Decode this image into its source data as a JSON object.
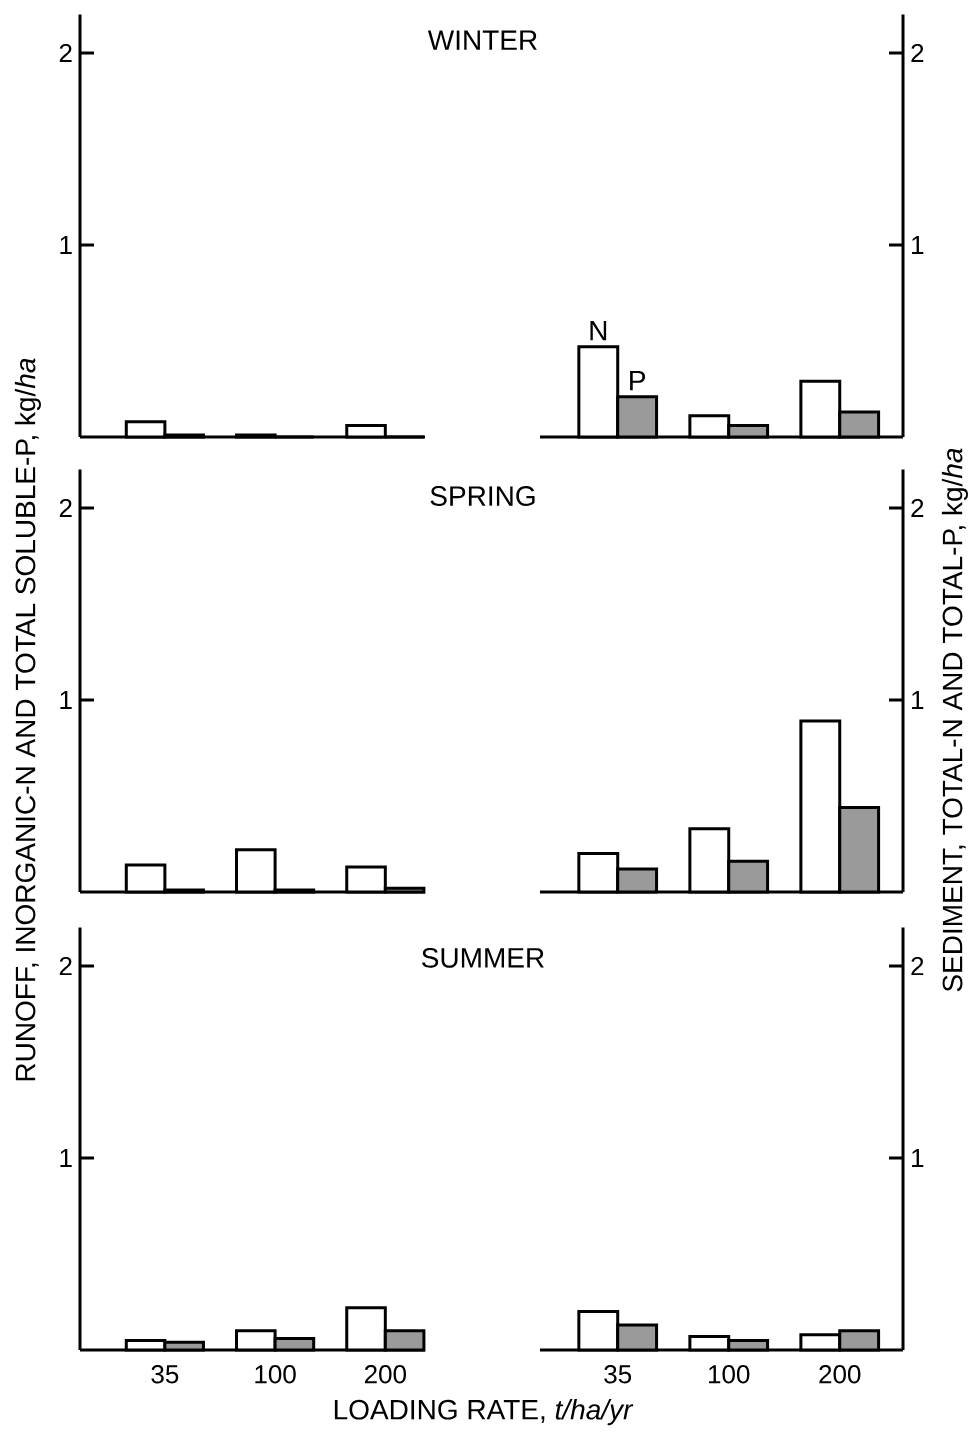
{
  "chart_data": [
    {
      "type": "bar",
      "title": "WINTER",
      "categories": [
        "35",
        "100",
        "200"
      ],
      "series": [
        {
          "color": "#ffffff",
          "values": [
            0.08,
            0.01,
            0.06
          ]
        },
        {
          "color": "#9a9a9a",
          "values": [
            0.01,
            0,
            0
          ]
        }
      ],
      "ylim": [
        0,
        2.2
      ],
      "yticks": [
        1,
        2
      ],
      "tick_labels": "y"
    },
    {
      "type": "bar",
      "categories": [
        "35",
        "100",
        "200"
      ],
      "series": [
        {
          "color": "#ffffff",
          "values": [
            0.47,
            0.11,
            0.29
          ]
        },
        {
          "color": "#9a9a9a",
          "values": [
            0.21,
            0.06,
            0.13
          ]
        }
      ],
      "ylim": [
        0,
        2.2
      ],
      "yticks": [
        1,
        2
      ],
      "tick_labels": "y",
      "annotations": [
        {
          "text": "N",
          "x": "35",
          "y": 0.47
        },
        {
          "text": "P",
          "x": "35",
          "y": 0.21
        }
      ]
    },
    {
      "type": "bar",
      "title": "SPRING",
      "ylabel": "RUNOFF, INORGANIC-N AND TOTAL SOLUBLE-P, kg/*ha*",
      "categories": [
        "35",
        "100",
        "200"
      ],
      "series": [
        {
          "color": "#ffffff",
          "values": [
            0.14,
            0.22,
            0.13
          ]
        },
        {
          "color": "#9a9a9a",
          "values": [
            0.01,
            0.01,
            0.02
          ]
        }
      ],
      "ylim": [
        0,
        2.2
      ],
      "yticks": [
        1,
        2
      ],
      "tick_labels": "y"
    },
    {
      "type": "bar",
      "ylabel": "SEDIMENT, TOTAL-N AND TOTAL-P, kg/*ha*",
      "categories": [
        "35",
        "100",
        "200"
      ],
      "series": [
        {
          "color": "#ffffff",
          "values": [
            0.2,
            0.33,
            0.89
          ]
        },
        {
          "color": "#9a9a9a",
          "values": [
            0.12,
            0.16,
            0.44
          ]
        }
      ],
      "ylim": [
        0,
        2.2
      ],
      "yticks": [
        1,
        2
      ],
      "tick_labels": "y"
    },
    {
      "type": "bar",
      "title": "SUMMER",
      "xlabel": "LOADING RATE, *t/ha/yr*",
      "categories": [
        "35",
        "100",
        "200"
      ],
      "series": [
        {
          "color": "#ffffff",
          "values": [
            0.05,
            0.1,
            0.22
          ]
        },
        {
          "color": "#9a9a9a",
          "values": [
            0.04,
            0.06,
            0.1
          ]
        }
      ],
      "ylim": [
        0,
        2.2
      ],
      "yticks": [
        1,
        2
      ]
    },
    {
      "type": "bar",
      "categories": [
        "35",
        "100",
        "200"
      ],
      "series": [
        {
          "color": "#ffffff",
          "values": [
            0.2,
            0.07,
            0.08
          ]
        },
        {
          "color": "#9a9a9a",
          "values": [
            0.13,
            0.05,
            0.1
          ]
        }
      ],
      "ylim": [
        0,
        2.2
      ],
      "yticks": [
        1,
        2
      ]
    }
  ]
}
